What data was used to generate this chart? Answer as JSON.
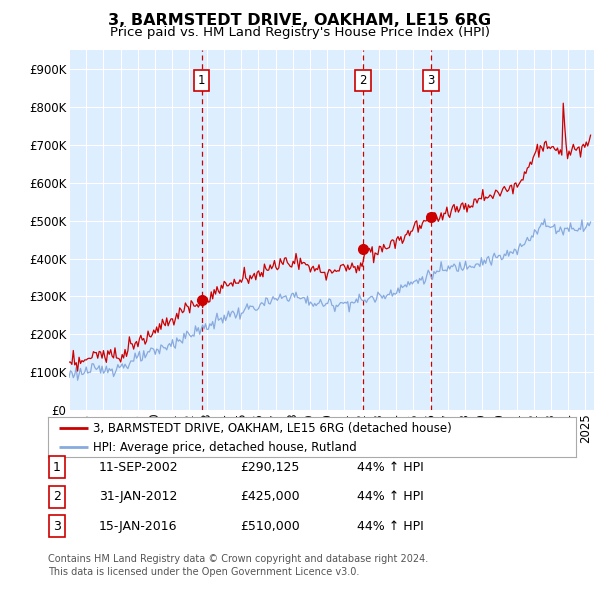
{
  "title": "3, BARMSTEDT DRIVE, OAKHAM, LE15 6RG",
  "subtitle": "Price paid vs. HM Land Registry's House Price Index (HPI)",
  "ylim": [
    0,
    950000
  ],
  "yticks": [
    0,
    100000,
    200000,
    300000,
    400000,
    500000,
    600000,
    700000,
    800000,
    900000
  ],
  "ytick_labels": [
    "£0",
    "£100K",
    "£200K",
    "£300K",
    "£400K",
    "£500K",
    "£600K",
    "£700K",
    "£800K",
    "£900K"
  ],
  "xlim_start": 1995.0,
  "xlim_end": 2025.5,
  "plot_bg_color": "#ddeeff",
  "red_line_color": "#cc0000",
  "blue_line_color": "#88aadd",
  "vline_color": "#cc0000",
  "grid_color": "#ffffff",
  "sales": [
    {
      "num": 1,
      "date_dec": 2002.7,
      "price": 290125,
      "label": "1"
    },
    {
      "num": 2,
      "date_dec": 2012.08,
      "price": 425000,
      "label": "2"
    },
    {
      "num": 3,
      "date_dec": 2016.04,
      "price": 510000,
      "label": "3"
    }
  ],
  "table_rows": [
    {
      "num": "1",
      "date": "11-SEP-2002",
      "price": "£290,125",
      "change": "44% ↑ HPI"
    },
    {
      "num": "2",
      "date": "31-JAN-2012",
      "price": "£425,000",
      "change": "44% ↑ HPI"
    },
    {
      "num": "3",
      "date": "15-JAN-2016",
      "price": "£510,000",
      "change": "44% ↑ HPI"
    }
  ],
  "legend_line1": "3, BARMSTEDT DRIVE, OAKHAM, LE15 6RG (detached house)",
  "legend_line2": "HPI: Average price, detached house, Rutland",
  "footer": "Contains HM Land Registry data © Crown copyright and database right 2024.\nThis data is licensed under the Open Government Licence v3.0.",
  "title_fontsize": 11.5,
  "subtitle_fontsize": 9.5,
  "tick_fontsize": 8.5,
  "legend_fontsize": 8.5,
  "table_fontsize": 9,
  "footer_fontsize": 7
}
